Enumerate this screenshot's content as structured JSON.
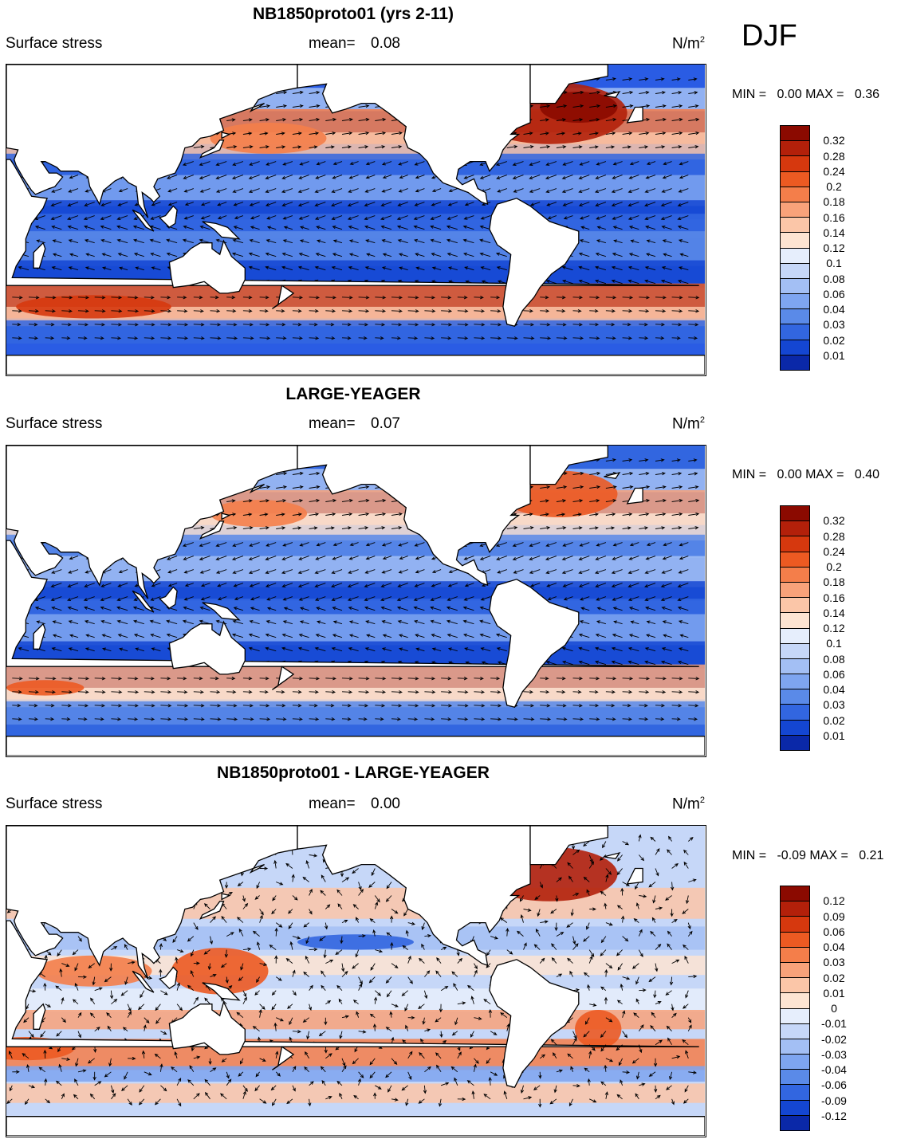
{
  "season": "DJF",
  "units": "N/m",
  "units_sup": "2",
  "panels": [
    {
      "title": "NB1850proto01 (yrs 2-11)",
      "variable": "Surface stress",
      "mean_label": "mean=",
      "mean_value": "0.08",
      "min_label": "MIN =",
      "min_value": "0.00",
      "max_label": "MAX =",
      "max_value": "0.36",
      "palette": "abs",
      "colorbar_levels": [
        "0.32",
        "0.28",
        "0.24",
        "0.2",
        "0.18",
        "0.16",
        "0.14",
        "0.12",
        "0.1",
        "0.08",
        "0.06",
        "0.04",
        "0.03",
        "0.02",
        "0.01"
      ],
      "colorbar_colors": [
        "#8b0a00",
        "#b3200a",
        "#d6380e",
        "#ec5a22",
        "#f47e4a",
        "#f8a27a",
        "#fbc6a8",
        "#fde4d2",
        "#e6eefc",
        "#c6d7f8",
        "#a3bff4",
        "#7ea5f0",
        "#5a8ae8",
        "#3266e0",
        "#1446d2",
        "#0a28a8"
      ],
      "background": "#2a5ce4",
      "bands": [
        {
          "lat": 62,
          "width": 6,
          "color": "#a3bff4"
        },
        {
          "lat": 48,
          "width": 9,
          "color": "#f47e4a"
        },
        {
          "lat": 38,
          "width": 7,
          "color": "#fbc6a8"
        },
        {
          "lat": 28,
          "width": 6,
          "color": "#3266e0"
        },
        {
          "lat": 15,
          "width": 8,
          "color": "#7ea5f0"
        },
        {
          "lat": 5,
          "width": 5,
          "color": "#1446d2"
        },
        {
          "lat": -3,
          "width": 6,
          "color": "#3266e0"
        },
        {
          "lat": -15,
          "width": 9,
          "color": "#5a8ae8"
        },
        {
          "lat": -28,
          "width": 7,
          "color": "#1446d2"
        },
        {
          "lat": -42,
          "width": 9,
          "color": "#ec5a22"
        },
        {
          "lat": -50,
          "width": 5,
          "color": "#fbc6a8"
        },
        {
          "lat": -58,
          "width": 6,
          "color": "#3266e0"
        }
      ],
      "blobs": [
        {
          "lon": -50,
          "lat": 55,
          "rx": 40,
          "ry": 16,
          "color": "#b3200a"
        },
        {
          "lon": -35,
          "lat": 58,
          "rx": 20,
          "ry": 8,
          "color": "#8b0a00"
        },
        {
          "lon": 165,
          "lat": 42,
          "rx": 30,
          "ry": 8,
          "color": "#f47e4a"
        },
        {
          "lon": 75,
          "lat": -45,
          "rx": 40,
          "ry": 6,
          "color": "#d6380e"
        }
      ]
    },
    {
      "title": "LARGE-YEAGER",
      "variable": "Surface stress",
      "mean_label": "mean=",
      "mean_value": "0.07",
      "min_label": "MIN =",
      "min_value": "0.00",
      "max_label": "MAX =",
      "max_value": "0.40",
      "palette": "abs",
      "colorbar_levels": [
        "0.32",
        "0.28",
        "0.24",
        "0.2",
        "0.18",
        "0.16",
        "0.14",
        "0.12",
        "0.1",
        "0.08",
        "0.06",
        "0.04",
        "0.03",
        "0.02",
        "0.01"
      ],
      "colorbar_colors": [
        "#8b0a00",
        "#b3200a",
        "#d6380e",
        "#ec5a22",
        "#f47e4a",
        "#f8a27a",
        "#fbc6a8",
        "#fde4d2",
        "#e6eefc",
        "#c6d7f8",
        "#a3bff4",
        "#7ea5f0",
        "#5a8ae8",
        "#3266e0",
        "#1446d2",
        "#0a28a8"
      ],
      "background": "#3266e0",
      "bands": [
        {
          "lat": 62,
          "width": 6,
          "color": "#a3bff4"
        },
        {
          "lat": 48,
          "width": 9,
          "color": "#f8a27a"
        },
        {
          "lat": 38,
          "width": 7,
          "color": "#fde4d2"
        },
        {
          "lat": 28,
          "width": 6,
          "color": "#5a8ae8"
        },
        {
          "lat": 15,
          "width": 8,
          "color": "#a3bff4"
        },
        {
          "lat": 5,
          "width": 5,
          "color": "#1446d2"
        },
        {
          "lat": -5,
          "width": 6,
          "color": "#3266e0"
        },
        {
          "lat": -15,
          "width": 8,
          "color": "#7ea5f0"
        },
        {
          "lat": -28,
          "width": 7,
          "color": "#1446d2"
        },
        {
          "lat": -42,
          "width": 9,
          "color": "#f8a27a"
        },
        {
          "lat": -50,
          "width": 5,
          "color": "#fde4d2"
        },
        {
          "lat": -58,
          "width": 6,
          "color": "#5a8ae8"
        }
      ],
      "blobs": [
        {
          "lon": -45,
          "lat": 55,
          "rx": 30,
          "ry": 12,
          "color": "#ec5a22"
        },
        {
          "lon": 160,
          "lat": 45,
          "rx": 25,
          "ry": 7,
          "color": "#f47e4a"
        },
        {
          "lon": 50,
          "lat": -45,
          "rx": 20,
          "ry": 4,
          "color": "#ec5a22"
        }
      ]
    },
    {
      "title": "NB1850proto01 - LARGE-YEAGER",
      "variable": "Surface stress",
      "mean_label": "mean=",
      "mean_value": "0.00",
      "min_label": "MIN =",
      "min_value": "-0.09",
      "max_label": "MAX =",
      "max_value": "0.21",
      "palette": "diff",
      "colorbar_levels": [
        "0.12",
        "0.09",
        "0.06",
        "0.04",
        "0.03",
        "0.02",
        "0.01",
        "0",
        "-0.01",
        "-0.02",
        "-0.03",
        "-0.04",
        "-0.06",
        "-0.09",
        "-0.12"
      ],
      "colorbar_colors": [
        "#8b0a00",
        "#b3200a",
        "#d6380e",
        "#ec5a22",
        "#f47e4a",
        "#f8a27a",
        "#fbc6a8",
        "#fde4d2",
        "#e6eefc",
        "#c6d7f8",
        "#a3bff4",
        "#7ea5f0",
        "#5a8ae8",
        "#3266e0",
        "#1446d2",
        "#0a28a8"
      ],
      "background": "#c6d7f8",
      "bands": [
        {
          "lat": 40,
          "width": 8,
          "color": "#fbc6a8"
        },
        {
          "lat": 22,
          "width": 6,
          "color": "#a3bff4"
        },
        {
          "lat": 8,
          "width": 5,
          "color": "#fde4d2"
        },
        {
          "lat": -10,
          "width": 6,
          "color": "#e6eefc"
        },
        {
          "lat": -20,
          "width": 5,
          "color": "#f8a27a"
        },
        {
          "lat": -38,
          "width": 8,
          "color": "#f47e4a"
        },
        {
          "lat": -48,
          "width": 4,
          "color": "#7ea5f0"
        },
        {
          "lat": -58,
          "width": 5,
          "color": "#fbc6a8"
        }
      ],
      "blobs": [
        {
          "lon": -50,
          "lat": 55,
          "rx": 35,
          "ry": 14,
          "color": "#b3200a"
        },
        {
          "lon": 140,
          "lat": 5,
          "rx": 25,
          "ry": 12,
          "color": "#ec5a22"
        },
        {
          "lon": 75,
          "lat": 5,
          "rx": 30,
          "ry": 8,
          "color": "#f47e4a"
        },
        {
          "lon": -150,
          "lat": 20,
          "rx": 30,
          "ry": 4,
          "color": "#3266e0"
        },
        {
          "lon": -25,
          "lat": -25,
          "rx": 12,
          "ry": 10,
          "color": "#ec5a22"
        },
        {
          "lon": 40,
          "lat": -35,
          "rx": 25,
          "ry": 6,
          "color": "#ec5a22"
        }
      ]
    }
  ]
}
